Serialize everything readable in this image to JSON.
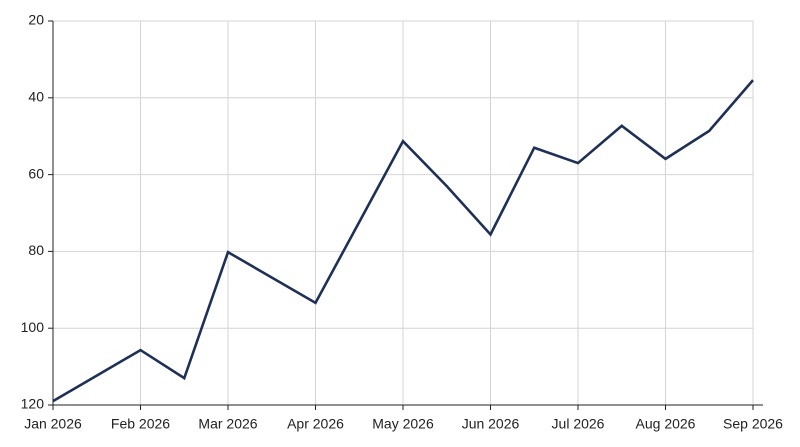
{
  "chart_data": {
    "type": "line",
    "x": [
      0,
      1,
      1.5,
      2,
      3,
      4,
      4.5,
      5,
      5.5,
      6,
      6.5,
      7,
      7.5,
      8
    ],
    "series": [
      {
        "color": "#1f3057",
        "values": [
          119,
          105.7,
          113,
          80.2,
          93.4,
          51.3,
          63,
          75.6,
          53,
          57,
          47.3,
          55.9,
          48.6,
          35.4
        ]
      }
    ],
    "xlim": [
      0,
      8
    ],
    "xticks": [
      {
        "value": 0,
        "label": "Jan 2026"
      },
      {
        "value": 1,
        "label": "Feb 2026"
      },
      {
        "value": 2,
        "label": "Mar 2026"
      },
      {
        "value": 3,
        "label": "Apr 2026"
      },
      {
        "value": 4,
        "label": "May 2026"
      },
      {
        "value": 5,
        "label": "Jun 2026"
      },
      {
        "value": 6,
        "label": "Jul 2026"
      },
      {
        "value": 7,
        "label": "Aug 2026"
      },
      {
        "value": 8,
        "label": "Sep 2026"
      }
    ],
    "ylim": [
      120,
      20
    ],
    "yticks": [
      20,
      40,
      60,
      80,
      100,
      120
    ],
    "grid": true
  }
}
